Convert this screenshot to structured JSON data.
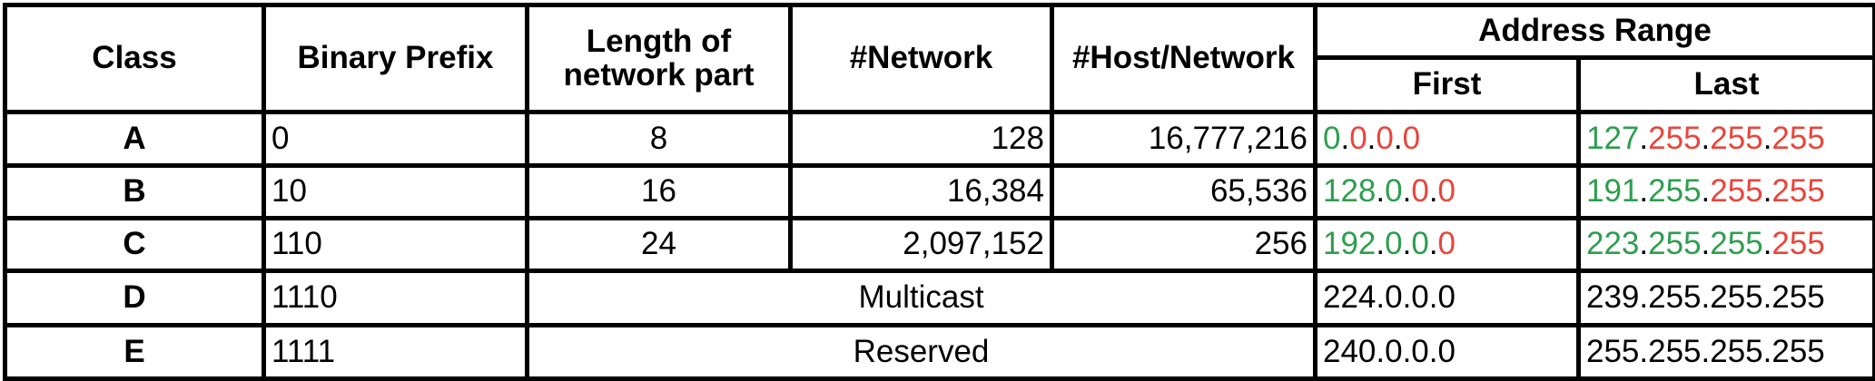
{
  "headers": {
    "class": "Class",
    "binary_prefix": "Binary Prefix",
    "network_length_line1": "Length of",
    "network_length_line2": "network part",
    "networks": "#Network",
    "hosts": "#Host/Network",
    "address_range": "Address Range",
    "first": "First",
    "last": "Last"
  },
  "colors": {
    "network_part": "#2e9e4f",
    "host_part": "#e8453c",
    "text": "#000000"
  },
  "rows": [
    {
      "class": "A",
      "prefix": "0",
      "length": "8",
      "networks": "128",
      "hosts": "16,777,216",
      "first": {
        "o1": "0",
        "o2": "0",
        "o3": "0",
        "o4": "0"
      },
      "last": {
        "o1": "127",
        "o2": "255",
        "o3": "255",
        "o4": "255"
      }
    },
    {
      "class": "B",
      "prefix": "10",
      "length": "16",
      "networks": "16,384",
      "hosts": "65,536",
      "first": {
        "o1": "128",
        "o2": "0",
        "o3": "0",
        "o4": "0"
      },
      "last": {
        "o1": "191",
        "o2": "255",
        "o3": "255",
        "o4": "255"
      }
    },
    {
      "class": "C",
      "prefix": "110",
      "length": "24",
      "networks": "2,097,152",
      "hosts": "256",
      "first": {
        "o1": "192",
        "o2": "0",
        "o3": "0",
        "o4": "0"
      },
      "last": {
        "o1": "223",
        "o2": "255",
        "o3": "255",
        "o4": "255"
      }
    },
    {
      "class": "D",
      "prefix": "1110",
      "note": "Multicast",
      "first": "224.0.0.0",
      "last": "239.255.255.255"
    },
    {
      "class": "E",
      "prefix": "1111",
      "note": "Reserved",
      "first": "240.0.0.0",
      "last": "255.255.255.255"
    }
  ]
}
